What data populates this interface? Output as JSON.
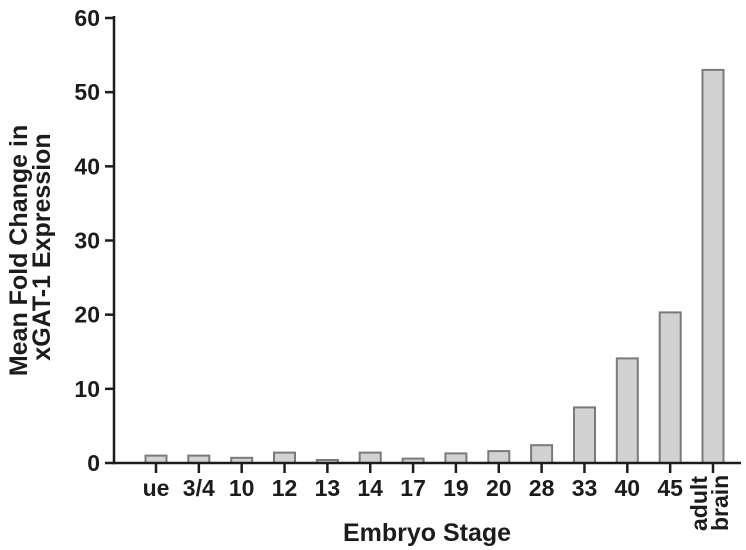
{
  "page": {
    "background": "#ffffff"
  },
  "chart_data": {
    "type": "bar",
    "title": "",
    "xlabel": "Embryo Stage",
    "ylabel": "Mean Fold Change in xGAT-1 Expression",
    "ylabel_lines": [
      "Mean Fold Change in",
      "xGAT-1 Expression"
    ],
    "categories": [
      "ue",
      "3/4",
      "10",
      "12",
      "13",
      "14",
      "17",
      "19",
      "20",
      "28",
      "33",
      "40",
      "45",
      "adult brain"
    ],
    "last_category_lines": [
      "adult",
      "brain"
    ],
    "values": [
      1.0,
      1.0,
      0.7,
      1.4,
      0.4,
      1.4,
      0.6,
      1.3,
      1.6,
      2.4,
      7.5,
      14.1,
      20.3,
      53.0
    ],
    "ylim": [
      0,
      60
    ],
    "yticks": [
      0,
      10,
      20,
      30,
      40,
      50,
      60
    ],
    "grid": false,
    "legend": "none",
    "bar_fill": "#d2d2d2",
    "bar_stroke": "#7a7a7a",
    "axis_color": "#1c1c1c",
    "text_color": "#1c1c1c"
  }
}
